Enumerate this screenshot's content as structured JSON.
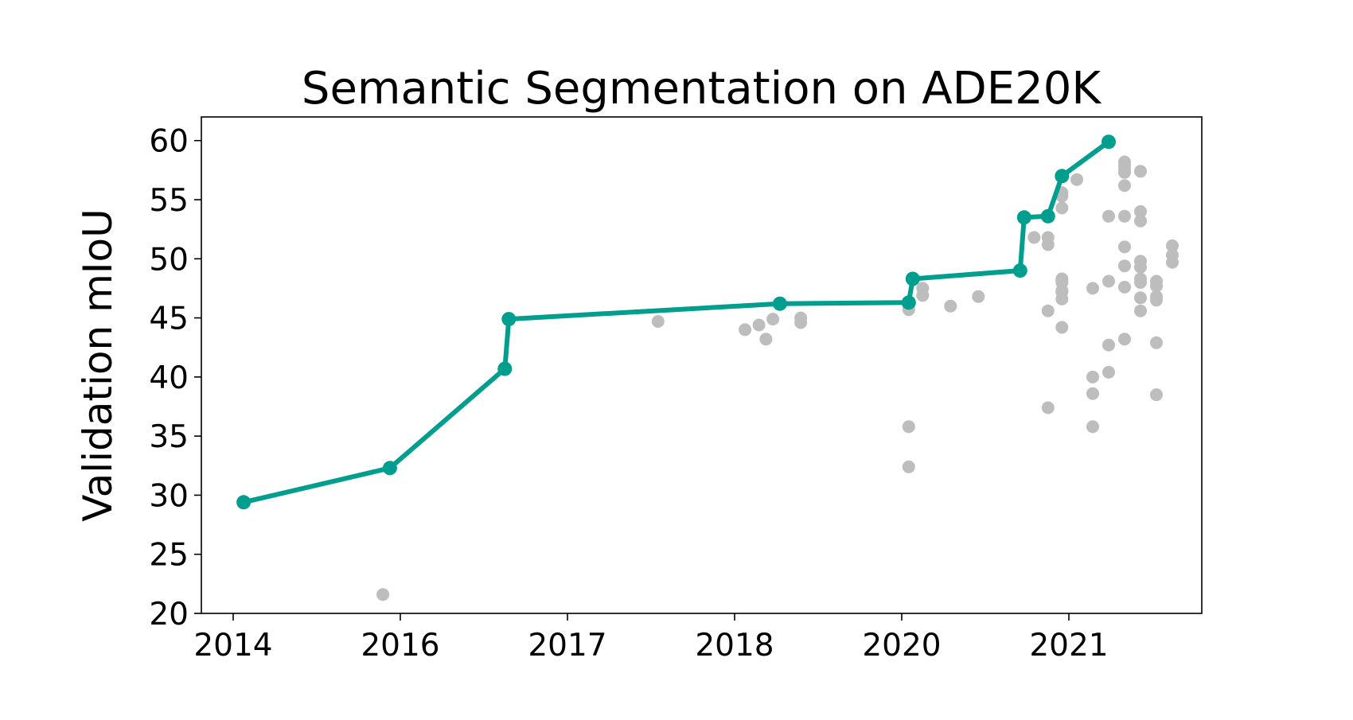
{
  "chart_data": {
    "type": "scatter",
    "title": "Semantic Segmentation on ADE20K",
    "xlabel": "",
    "ylabel": "Validation mIoU",
    "xticks": [
      "2014",
      "2016",
      "2017",
      "2018",
      "2020",
      "2021"
    ],
    "yticks": [
      "20",
      "25",
      "30",
      "35",
      "40",
      "45",
      "50",
      "55",
      "60"
    ],
    "ylim": [
      20,
      62
    ],
    "grid": false,
    "colors": {
      "frontier": "#009e8f",
      "others": "#bdbdbd"
    },
    "series": [
      {
        "role": "frontier",
        "x": [
          "2014-02",
          "2015-11",
          "2016-08",
          "2016-08",
          "2018-07",
          "2020-01",
          "2020-01",
          "2020-09",
          "2020-09",
          "2020-11",
          "2020-12",
          "2021-03"
        ],
        "y": [
          29.4,
          32.3,
          40.7,
          44.9,
          46.2,
          46.3,
          48.3,
          49.0,
          53.5,
          53.6,
          57.0,
          59.9
        ]
      },
      {
        "role": "others",
        "x": [
          "2015-10",
          "2017-07",
          "2018-02",
          "2018-04",
          "2018-05",
          "2018-06",
          "2018-10",
          "2018-10",
          "2020-01",
          "2020-01",
          "2020-01",
          "2020-01",
          "2020-02",
          "2020-02",
          "2020-04",
          "2020-06",
          "2020-10",
          "2020-11",
          "2020-11",
          "2020-11",
          "2020-11",
          "2020-12",
          "2020-12",
          "2020-12",
          "2020-12",
          "2020-12",
          "2020-12",
          "2020-12",
          "2020-12",
          "2020-12",
          "2020-12",
          "2021-01",
          "2021-02",
          "2021-02",
          "2021-02",
          "2021-02",
          "2021-03",
          "2021-03",
          "2021-03",
          "2021-03",
          "2021-04",
          "2021-04",
          "2021-04",
          "2021-04",
          "2021-04",
          "2021-04",
          "2021-04",
          "2021-04",
          "2021-04",
          "2021-04",
          "2021-05",
          "2021-05",
          "2021-05",
          "2021-05",
          "2021-05",
          "2021-05",
          "2021-05",
          "2021-05",
          "2021-05",
          "2021-06",
          "2021-06",
          "2021-06",
          "2021-06",
          "2021-06",
          "2021-06",
          "2021-07",
          "2021-07",
          "2021-07"
        ],
        "y": [
          21.6,
          44.7,
          44.0,
          44.4,
          43.2,
          44.9,
          45.0,
          44.6,
          45.7,
          46.1,
          35.8,
          32.4,
          46.9,
          47.5,
          46.0,
          46.8,
          51.8,
          45.6,
          51.8,
          51.2,
          37.4,
          47.2,
          44.2,
          48.3,
          48.0,
          47.3,
          46.6,
          55.3,
          55.6,
          54.3,
          48.1,
          56.7,
          40.0,
          38.6,
          35.8,
          47.5,
          53.6,
          48.1,
          40.4,
          42.7,
          57.6,
          57.3,
          57.9,
          58.2,
          53.6,
          56.2,
          51.0,
          47.6,
          43.2,
          49.4,
          57.4,
          54.0,
          53.2,
          49.8,
          49.3,
          48.3,
          46.7,
          45.6,
          48.0,
          47.7,
          46.5,
          48.1,
          46.8,
          42.9,
          38.5,
          50.3,
          51.1,
          49.7
        ]
      }
    ]
  }
}
